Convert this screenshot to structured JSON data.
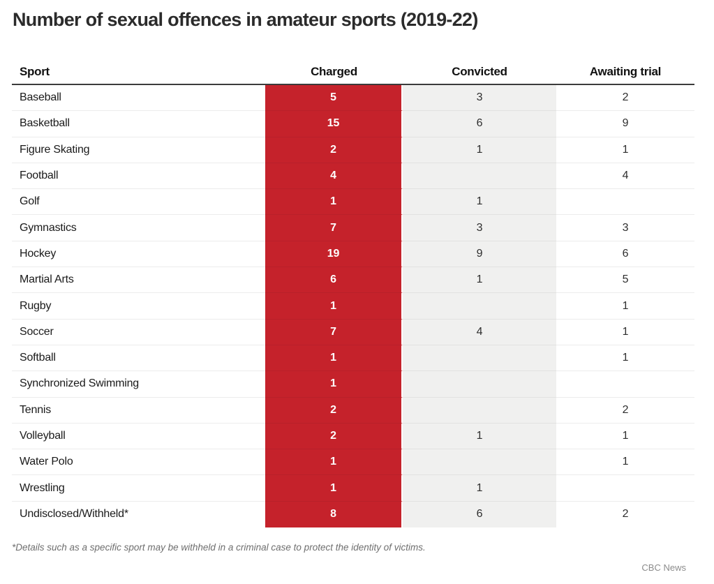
{
  "title": "Number of sexual offences in amateur sports (2019-22)",
  "footnote": "*Details such as a specific sport may be withheld in a criminal case to protect the identity of victims.",
  "source": "CBC News",
  "colors": {
    "charged_bg": "#c5222b",
    "charged_divider": "#b9202a",
    "convicted_bg": "#f0f0ef",
    "convicted_divider": "#e2e2e1",
    "row_divider": "#ececec",
    "header_rule": "#3b3b3b",
    "title_text": "#2b2b2b",
    "footnote_text": "#6e6e6e",
    "source_text": "#8c8c8c"
  },
  "chart_data": {
    "type": "table",
    "title": "Number of sexual offences in amateur sports (2019-22)",
    "columns": [
      "Sport",
      "Charged",
      "Convicted",
      "Awaiting trial"
    ],
    "highlight_column": "Charged",
    "rows": [
      {
        "sport": "Baseball",
        "charged": "5",
        "convicted": "3",
        "awaiting_trial": "2"
      },
      {
        "sport": "Basketball",
        "charged": "15",
        "convicted": "6",
        "awaiting_trial": "9"
      },
      {
        "sport": "Figure Skating",
        "charged": "2",
        "convicted": "1",
        "awaiting_trial": "1"
      },
      {
        "sport": "Football",
        "charged": "4",
        "convicted": "",
        "awaiting_trial": "4"
      },
      {
        "sport": "Golf",
        "charged": "1",
        "convicted": "1",
        "awaiting_trial": ""
      },
      {
        "sport": "Gymnastics",
        "charged": "7",
        "convicted": "3",
        "awaiting_trial": "3"
      },
      {
        "sport": "Hockey",
        "charged": "19",
        "convicted": "9",
        "awaiting_trial": "6"
      },
      {
        "sport": "Martial Arts",
        "charged": "6",
        "convicted": "1",
        "awaiting_trial": "5"
      },
      {
        "sport": "Rugby",
        "charged": "1",
        "convicted": "",
        "awaiting_trial": "1"
      },
      {
        "sport": "Soccer",
        "charged": "7",
        "convicted": "4",
        "awaiting_trial": "1"
      },
      {
        "sport": "Softball",
        "charged": "1",
        "convicted": "",
        "awaiting_trial": "1"
      },
      {
        "sport": "Synchronized Swimming",
        "charged": "1",
        "convicted": "",
        "awaiting_trial": ""
      },
      {
        "sport": "Tennis",
        "charged": "2",
        "convicted": "",
        "awaiting_trial": "2"
      },
      {
        "sport": "Volleyball",
        "charged": "2",
        "convicted": "1",
        "awaiting_trial": "1"
      },
      {
        "sport": "Water Polo",
        "charged": "1",
        "convicted": "",
        "awaiting_trial": "1"
      },
      {
        "sport": "Wrestling",
        "charged": "1",
        "convicted": "1",
        "awaiting_trial": ""
      },
      {
        "sport": "Undisclosed/Withheld*",
        "charged": "8",
        "convicted": "6",
        "awaiting_trial": "2"
      }
    ]
  }
}
